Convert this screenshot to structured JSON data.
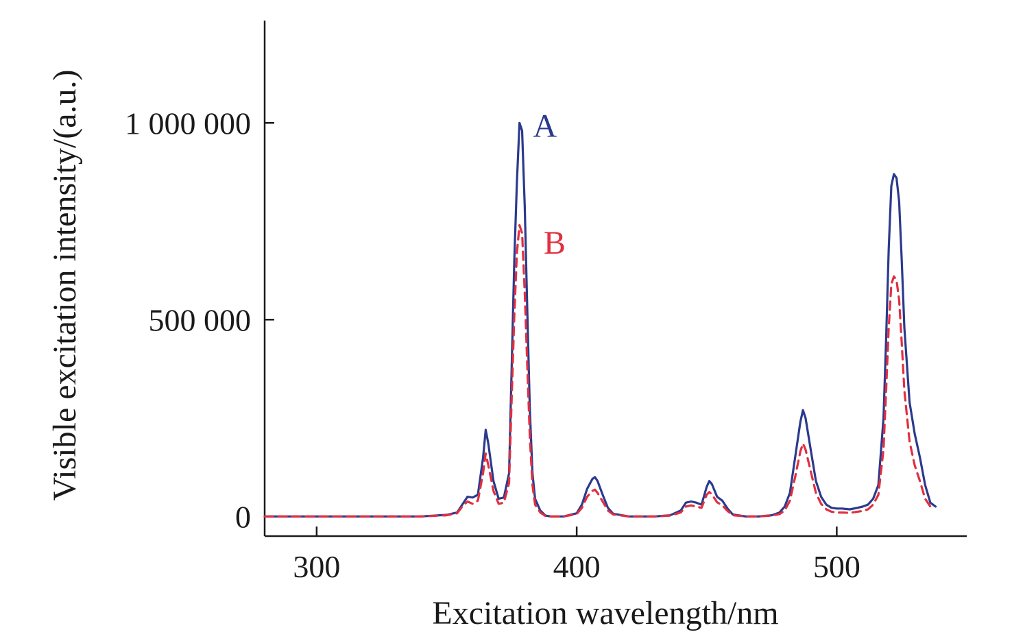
{
  "chart_data": {
    "type": "line",
    "title": "",
    "xlabel": "Excitation wavelength/nm",
    "ylabel": "Visible excitation intensity/(a.u.)",
    "xlim": [
      280,
      550
    ],
    "ylim": [
      -50000,
      1260000
    ],
    "x_ticks": [
      300,
      400,
      500
    ],
    "x_tick_labels": [
      "300",
      "400",
      "500"
    ],
    "y_ticks": [
      0,
      500000,
      1000000
    ],
    "y_tick_labels": [
      "0",
      "500 000",
      "1 000 000"
    ],
    "grid": false,
    "legend": "inline labels next to peaks",
    "series": [
      {
        "name": "A",
        "color": "#2b3a8c",
        "style": "solid",
        "x": [
          280,
          340,
          350,
          354,
          356,
          358,
          360,
          362,
          364,
          365,
          366,
          368,
          370,
          372,
          374,
          375,
          376,
          377,
          378,
          379,
          380,
          381,
          382,
          383,
          384,
          386,
          388,
          390,
          395,
          400,
          402,
          404,
          406,
          407,
          408,
          410,
          412,
          414,
          420,
          430,
          436,
          440,
          442,
          444,
          446,
          448,
          450,
          451,
          452,
          454,
          456,
          458,
          460,
          465,
          470,
          475,
          478,
          480,
          482,
          484,
          486,
          487,
          488,
          490,
          492,
          494,
          496,
          498,
          500,
          502,
          505,
          508,
          510,
          512,
          514,
          516,
          518,
          519,
          520,
          521,
          522,
          523,
          524,
          525,
          526,
          528,
          530,
          532,
          534,
          536,
          538
        ],
        "y": [
          0,
          0,
          4000,
          10000,
          30000,
          50000,
          48000,
          55000,
          150000,
          220000,
          185000,
          90000,
          45000,
          48000,
          110000,
          380000,
          650000,
          850000,
          1000000,
          980000,
          790000,
          520000,
          270000,
          110000,
          45000,
          15000,
          2000,
          0,
          0,
          8000,
          30000,
          70000,
          95000,
          100000,
          90000,
          55000,
          22000,
          7000,
          0,
          0,
          3000,
          15000,
          35000,
          38000,
          35000,
          30000,
          75000,
          90000,
          82000,
          50000,
          40000,
          20000,
          5000,
          0,
          0,
          3000,
          10000,
          25000,
          60000,
          150000,
          240000,
          270000,
          250000,
          170000,
          90000,
          50000,
          30000,
          22000,
          20000,
          20000,
          18000,
          22000,
          25000,
          30000,
          45000,
          80000,
          250000,
          450000,
          680000,
          840000,
          870000,
          860000,
          800000,
          650000,
          480000,
          290000,
          210000,
          150000,
          80000,
          35000,
          25000
        ]
      },
      {
        "name": "B",
        "color": "#e03040",
        "style": "dashed",
        "x": [
          280,
          340,
          350,
          354,
          356,
          358,
          360,
          362,
          364,
          365,
          366,
          368,
          370,
          372,
          374,
          375,
          376,
          377,
          378,
          379,
          380,
          381,
          382,
          383,
          384,
          386,
          388,
          390,
          395,
          400,
          402,
          404,
          406,
          407,
          408,
          410,
          412,
          414,
          420,
          430,
          436,
          440,
          442,
          444,
          446,
          448,
          450,
          451,
          452,
          454,
          456,
          458,
          460,
          465,
          470,
          475,
          478,
          480,
          482,
          484,
          486,
          487,
          488,
          490,
          492,
          494,
          496,
          498,
          500,
          502,
          505,
          508,
          510,
          512,
          514,
          516,
          518,
          519,
          520,
          521,
          522,
          523,
          524,
          525,
          526,
          528,
          530,
          532,
          534,
          536
        ],
        "y": [
          0,
          0,
          3000,
          8000,
          25000,
          38000,
          32000,
          40000,
          110000,
          160000,
          130000,
          65000,
          32000,
          35000,
          85000,
          300000,
          510000,
          670000,
          740000,
          720000,
          570000,
          380000,
          200000,
          80000,
          30000,
          10000,
          1000,
          0,
          0,
          6000,
          22000,
          50000,
          65000,
          68000,
          60000,
          38000,
          15000,
          5000,
          0,
          0,
          2000,
          10000,
          25000,
          28000,
          25000,
          22000,
          55000,
          62000,
          56000,
          36000,
          28000,
          14000,
          3000,
          0,
          0,
          2000,
          6000,
          15000,
          40000,
          100000,
          165000,
          185000,
          170000,
          115000,
          60000,
          32000,
          18000,
          12000,
          10000,
          10000,
          9000,
          12000,
          14000,
          18000,
          30000,
          55000,
          170000,
          320000,
          480000,
          590000,
          610000,
          600000,
          550000,
          440000,
          320000,
          190000,
          130000,
          90000,
          45000,
          25000
        ]
      }
    ]
  }
}
